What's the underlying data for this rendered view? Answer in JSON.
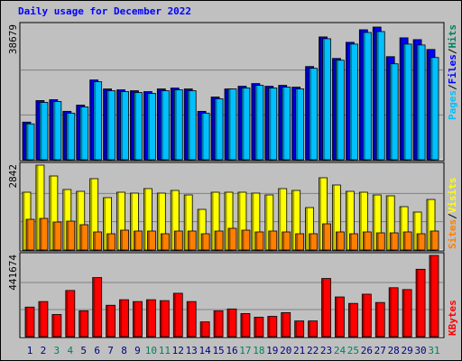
{
  "chart_data": [
    {
      "type": "bar",
      "title": "Daily usage for December 2022",
      "title_color": "#0000FF",
      "ylim": [
        0,
        38679
      ],
      "yticks": [
        38679
      ],
      "grid": true,
      "legend": [
        {
          "name": "Pages",
          "color": "#00C0FF"
        },
        {
          "name": "Files",
          "color": "#0000FF"
        },
        {
          "name": "Hits",
          "color": "#00805C"
        }
      ],
      "legend_separator": "/",
      "series": [
        {
          "color": "#0000FF",
          "values": [
            10830,
            17019,
            17277,
            13924,
            15730,
            22950,
            20371,
            20113,
            19855,
            19598,
            20371,
            20629,
            20371,
            13924,
            18050,
            20371,
            21145,
            21918,
            21145,
            21402,
            20887,
            26817,
            35326,
            29138,
            33780,
            37390,
            38163,
            29654,
            35068,
            34552,
            31717
          ]
        },
        {
          "color": "#00C0FF",
          "values": [
            10314,
            16503,
            16761,
            13408,
            15214,
            22434,
            19855,
            19598,
            19340,
            19082,
            19855,
            20113,
            19855,
            13408,
            17535,
            20371,
            20629,
            21402,
            20629,
            20887,
            20371,
            26302,
            34810,
            28622,
            33264,
            36611,
            36869,
            27591,
            33264,
            33006,
            29396
          ]
        }
      ]
    },
    {
      "type": "bar",
      "ylim": [
        0,
        2842
      ],
      "yticks": [
        2842
      ],
      "grid": true,
      "legend": [
        {
          "name": "Sites",
          "color": "#FF8000"
        },
        {
          "name": "Visits",
          "color": "#FFFF00"
        }
      ],
      "legend_separator": "/",
      "series": [
        {
          "color": "#FFFF00",
          "values": [
            1935,
            2842,
            2479,
            2026,
            1965,
            2389,
            1754,
            1935,
            1905,
            2056,
            1905,
            1995,
            1844,
            1361,
            1935,
            1935,
            1935,
            1905,
            1844,
            2056,
            1995,
            1421,
            2419,
            2177,
            1965,
            1935,
            1844,
            1814,
            1451,
            1270,
            1693
          ]
        },
        {
          "color": "#FF8000",
          "values": [
            1028,
            1058,
            937,
            967,
            847,
            605,
            544,
            665,
            635,
            635,
            544,
            635,
            635,
            544,
            635,
            726,
            665,
            605,
            635,
            605,
            544,
            544,
            877,
            605,
            544,
            605,
            574,
            574,
            605,
            544,
            635
          ]
        }
      ]
    },
    {
      "type": "bar",
      "ylim": [
        0,
        441674
      ],
      "yticks": [
        441674
      ],
      "grid": true,
      "legend": [
        {
          "name": "KBytes",
          "color": "#FF0000"
        }
      ],
      "categories": [
        "1",
        "2",
        "3",
        "4",
        "5",
        "6",
        "7",
        "8",
        "9",
        "10",
        "11",
        "12",
        "13",
        "14",
        "15",
        "16",
        "17",
        "18",
        "19",
        "20",
        "21",
        "22",
        "23",
        "24",
        "25",
        "26",
        "27",
        "28",
        "29",
        "30",
        "31"
      ],
      "category_color": "#000080",
      "weekend_color": "#00805C",
      "weekends": [
        2,
        3,
        9,
        10,
        16,
        17,
        23,
        24,
        30
      ],
      "series": [
        {
          "color": "#FF0000",
          "values": [
            160609,
            190723,
            120457,
            250951,
            140533,
            321218,
            170647,
            200761,
            190723,
            200761,
            195742,
            235894,
            190723,
            80304,
            140533,
            150571,
            125476,
            105400,
            110419,
            130495,
            85323,
            85323,
            316199,
            215818,
            180685,
            230876,
            185704,
            266008,
            255970,
            366388,
            441674
          ]
        }
      ]
    }
  ]
}
